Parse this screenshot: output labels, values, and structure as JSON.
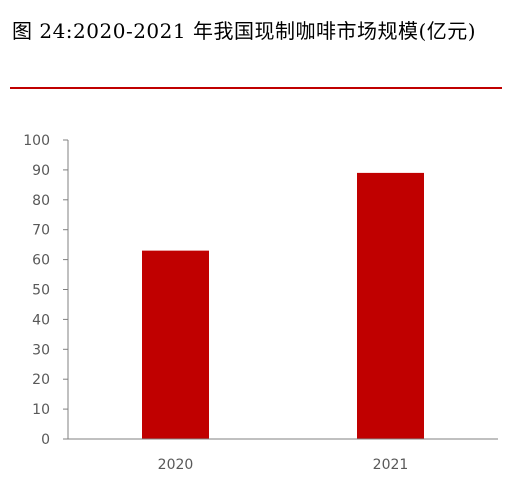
{
  "title": "图  24:2020-2021 年我国现制咖啡市场规模(亿元)",
  "colors": {
    "bar": "#c00000",
    "title_rule": "#c00000",
    "axis": "#808080",
    "tick_text": "#595959"
  },
  "chart_data": {
    "type": "bar",
    "title": "图  24:2020-2021 年我国现制咖啡市场规模(亿元)",
    "categories": [
      "2020",
      "2021"
    ],
    "values": [
      63,
      89
    ],
    "xlabel": "",
    "ylabel": "",
    "ylim": [
      0,
      100
    ],
    "yticks": [
      0,
      10,
      20,
      30,
      40,
      50,
      60,
      70,
      80,
      90,
      100
    ],
    "grid": false,
    "legend": "none"
  }
}
